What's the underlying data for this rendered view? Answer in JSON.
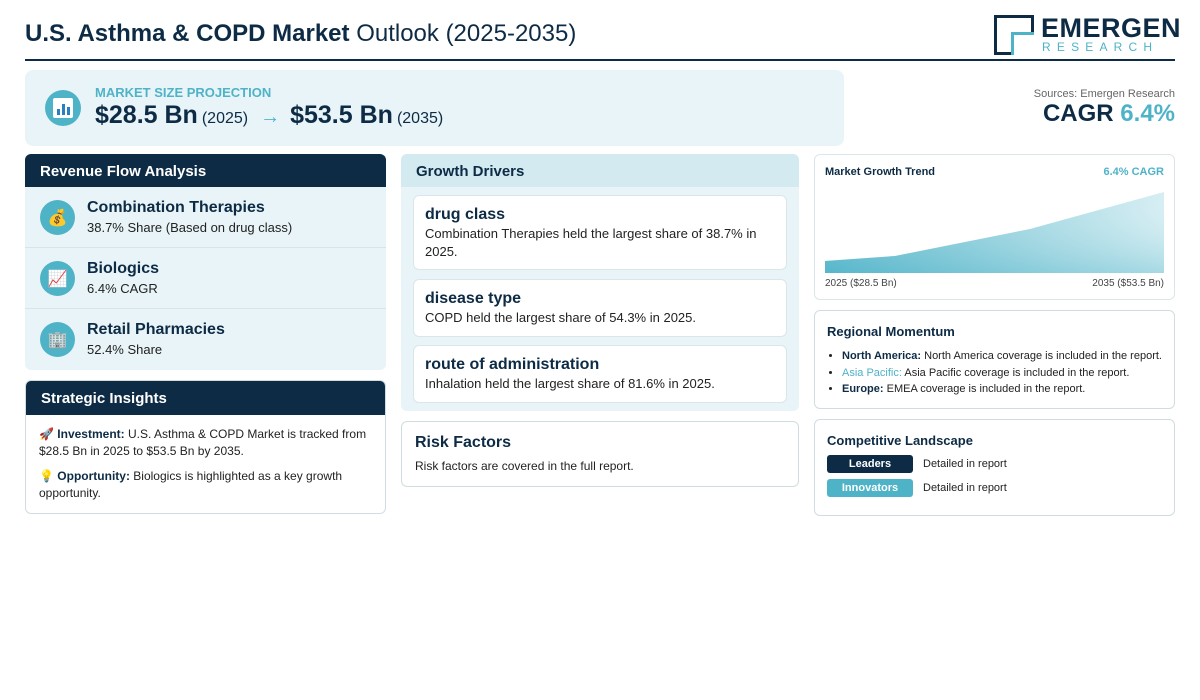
{
  "header": {
    "title_bold": "U.S. Asthma & COPD Market",
    "title_rest": "Outlook (2025-2035)",
    "logo_name": "EMERGEN",
    "logo_sub": "RESEARCH"
  },
  "projection": {
    "label": "MARKET SIZE PROJECTION",
    "start_value": "$28.5 Bn",
    "start_year": "(2025)",
    "arrow": "→",
    "end_value": "$53.5 Bn",
    "end_year": "(2035)"
  },
  "sources": "Sources: Emergen Research",
  "cagr": {
    "label": "CAGR",
    "value": "6.4%"
  },
  "revenue_flow": {
    "title": "Revenue Flow Analysis",
    "items": [
      {
        "icon": "money-bag-icon",
        "title": "Combination Therapies",
        "sub": "38.7% Share (Based on drug class)"
      },
      {
        "icon": "chart-up-icon",
        "title": "Biologics",
        "sub": "6.4% CAGR"
      },
      {
        "icon": "building-icon",
        "title": "Retail Pharmacies",
        "sub": "52.4% Share"
      }
    ]
  },
  "strategic": {
    "title": "Strategic Insights",
    "investment_label": "Investment:",
    "investment_text": "U.S. Asthma & COPD Market is tracked from $28.5 Bn in 2025 to $53.5 Bn by 2035.",
    "opportunity_label": "Opportunity:",
    "opportunity_text": "Biologics is highlighted as a key growth opportunity."
  },
  "drivers": {
    "title": "Growth Drivers",
    "cards": [
      {
        "title": "drug class",
        "text": "Combination Therapies held the largest share of 38.7% in 2025."
      },
      {
        "title": "disease type",
        "text": "COPD held the largest share of 54.3% in 2025."
      },
      {
        "title": "route of administration",
        "text": "Inhalation held the largest share of 81.6% in 2025."
      }
    ]
  },
  "risk": {
    "title": "Risk Factors",
    "text": "Risk factors are covered in the full report."
  },
  "trend": {
    "title": "Market Growth Trend",
    "cagr": "6.4% CAGR",
    "left_label": "2025 ($28.5 Bn)",
    "right_label": "2035 ($53.5 Bn)"
  },
  "region": {
    "title": "Regional Momentum",
    "items": [
      {
        "name": "North America:",
        "text": "North America coverage is included in the report."
      },
      {
        "name": "Asia Pacific:",
        "text": "Asia Pacific coverage is included in the report."
      },
      {
        "name": "Europe:",
        "text": "EMEA coverage is included in the report."
      }
    ]
  },
  "competitive": {
    "title": "Competitive Landscape",
    "rows": [
      {
        "badge": "Leaders",
        "text": "Detailed in report",
        "color": "#0d2b45"
      },
      {
        "badge": "Innovators",
        "text": "Detailed in report",
        "color": "#4fb3c8"
      }
    ]
  }
}
